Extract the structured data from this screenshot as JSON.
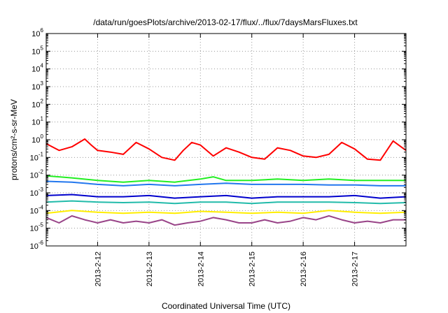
{
  "chart_data": {
    "type": "line",
    "title": "/data/run/goesPlots/archive/2013-02-17/flux/../flux/7daysMarsFluxes.txt",
    "xlabel": "Coordinated Universal Time (UTC)",
    "ylabel": "protons/cm²-s-sr-MeV",
    "y_scale": "log",
    "ylim": [
      1e-06,
      1000000.0
    ],
    "y_ticks": [
      {
        "base": "10",
        "exp": "-6"
      },
      {
        "base": "10",
        "exp": "-5"
      },
      {
        "base": "10",
        "exp": "-4"
      },
      {
        "base": "10",
        "exp": "-3"
      },
      {
        "base": "10",
        "exp": "-2"
      },
      {
        "base": "10",
        "exp": "-1"
      },
      {
        "base": "10",
        "exp": "0"
      },
      {
        "base": "10",
        "exp": "1"
      },
      {
        "base": "10",
        "exp": "2"
      },
      {
        "base": "10",
        "exp": "3"
      },
      {
        "base": "10",
        "exp": "4"
      },
      {
        "base": "10",
        "exp": "5"
      },
      {
        "base": "10",
        "exp": "6"
      }
    ],
    "xlim": [
      "2013-02-11",
      "2013-02-18"
    ],
    "x_tick_labels": [
      "2013-2-12",
      "2013-2-13",
      "2013-2-14",
      "2013-2-15",
      "2013-2-16",
      "2013-2-17"
    ],
    "grid": true,
    "series": [
      {
        "color": "#ff0000",
        "x": [
          "2013-02-11",
          "2013-02-11 06:00",
          "2013-02-11 12:00",
          "2013-02-11 18:00",
          "2013-02-11 21:00",
          "2013-02-12 00:00",
          "2013-02-12 06:00",
          "2013-02-12 12:00",
          "2013-02-12 18:00",
          "2013-02-13 00:00",
          "2013-02-13 06:00",
          "2013-02-13 12:00",
          "2013-02-13 16:00",
          "2013-02-13 20:00",
          "2013-02-14 00:00",
          "2013-02-14 06:00",
          "2013-02-14 12:00",
          "2013-02-14 18:00",
          "2013-02-15 00:00",
          "2013-02-15 06:00",
          "2013-02-15 12:00",
          "2013-02-15 18:00",
          "2013-02-16 00:00",
          "2013-02-16 06:00",
          "2013-02-16 12:00",
          "2013-02-16 18:00",
          "2013-02-17 00:00",
          "2013-02-17 06:00",
          "2013-02-17 12:00",
          "2013-02-17 18:00",
          "2013-02-18 00:00"
        ],
        "y": [
          0.6,
          0.25,
          0.4,
          1.1,
          0.5,
          0.25,
          0.2,
          0.15,
          0.7,
          0.3,
          0.1,
          0.07,
          0.25,
          0.7,
          0.5,
          0.12,
          0.35,
          0.2,
          0.1,
          0.08,
          0.35,
          0.25,
          0.12,
          0.1,
          0.15,
          0.7,
          0.3,
          0.08,
          0.07,
          0.85,
          0.25
        ]
      },
      {
        "color": "#22ee22",
        "x": [
          "2013-02-11",
          "2013-02-11 06:00",
          "2013-02-11 12:00",
          "2013-02-12 00:00",
          "2013-02-12 12:00",
          "2013-02-13 00:00",
          "2013-02-13 12:00",
          "2013-02-14 00:00",
          "2013-02-14 06:00",
          "2013-02-14 12:00",
          "2013-02-15 00:00",
          "2013-02-15 12:00",
          "2013-02-16 00:00",
          "2013-02-16 12:00",
          "2013-02-17 00:00",
          "2013-02-17 12:00",
          "2013-02-18 00:00"
        ],
        "y": [
          0.009,
          0.008,
          0.007,
          0.005,
          0.004,
          0.005,
          0.004,
          0.006,
          0.008,
          0.005,
          0.005,
          0.006,
          0.005,
          0.006,
          0.005,
          0.005,
          0.005
        ]
      },
      {
        "color": "#2277ee",
        "x": [
          "2013-02-11",
          "2013-02-11 12:00",
          "2013-02-12 00:00",
          "2013-02-12 12:00",
          "2013-02-13 00:00",
          "2013-02-13 12:00",
          "2013-02-14 00:00",
          "2013-02-14 12:00",
          "2013-02-15 00:00",
          "2013-02-15 12:00",
          "2013-02-16 00:00",
          "2013-02-16 12:00",
          "2013-02-17 00:00",
          "2013-02-17 12:00",
          "2013-02-18 00:00"
        ],
        "y": [
          0.0045,
          0.004,
          0.003,
          0.0025,
          0.003,
          0.0025,
          0.003,
          0.0035,
          0.003,
          0.003,
          0.003,
          0.0028,
          0.0028,
          0.0025,
          0.0025
        ]
      },
      {
        "color": "#0000cc",
        "x": [
          "2013-02-11",
          "2013-02-11 12:00",
          "2013-02-12 00:00",
          "2013-02-12 12:00",
          "2013-02-13 00:00",
          "2013-02-13 12:00",
          "2013-02-14 00:00",
          "2013-02-14 12:00",
          "2013-02-15 00:00",
          "2013-02-15 12:00",
          "2013-02-16 00:00",
          "2013-02-16 12:00",
          "2013-02-17 00:00",
          "2013-02-17 12:00",
          "2013-02-18 00:00"
        ],
        "y": [
          0.0007,
          0.0008,
          0.0006,
          0.0006,
          0.0007,
          0.0005,
          0.0006,
          0.0007,
          0.0005,
          0.0006,
          0.0006,
          0.0006,
          0.0007,
          0.0005,
          0.0006
        ]
      },
      {
        "color": "#22bbaa",
        "x": [
          "2013-02-11",
          "2013-02-11 12:00",
          "2013-02-12 00:00",
          "2013-02-12 12:00",
          "2013-02-13 00:00",
          "2013-02-13 12:00",
          "2013-02-14 00:00",
          "2013-02-14 12:00",
          "2013-02-15 00:00",
          "2013-02-15 12:00",
          "2013-02-16 00:00",
          "2013-02-16 12:00",
          "2013-02-17 00:00",
          "2013-02-17 12:00",
          "2013-02-18 00:00"
        ],
        "y": [
          0.0003,
          0.00035,
          0.0003,
          0.00028,
          0.0003,
          0.00025,
          0.0003,
          0.0003,
          0.00025,
          0.0003,
          0.0003,
          0.0003,
          0.00028,
          0.00025,
          0.00028
        ]
      },
      {
        "color": "#ffee00",
        "x": [
          "2013-02-11",
          "2013-02-11 12:00",
          "2013-02-12 00:00",
          "2013-02-12 12:00",
          "2013-02-13 00:00",
          "2013-02-13 12:00",
          "2013-02-14 00:00",
          "2013-02-14 12:00",
          "2013-02-15 00:00",
          "2013-02-15 12:00",
          "2013-02-16 00:00",
          "2013-02-16 12:00",
          "2013-02-17 00:00",
          "2013-02-17 12:00",
          "2013-02-18 00:00"
        ],
        "y": [
          7e-05,
          0.0001,
          8e-05,
          7e-05,
          8e-05,
          7e-05,
          9e-05,
          8e-05,
          7e-05,
          8e-05,
          7e-05,
          0.0001,
          8e-05,
          7e-05,
          8e-05
        ]
      },
      {
        "color": "#994488",
        "x": [
          "2013-02-11",
          "2013-02-11 06:00",
          "2013-02-11 12:00",
          "2013-02-11 18:00",
          "2013-02-12 00:00",
          "2013-02-12 06:00",
          "2013-02-12 12:00",
          "2013-02-12 18:00",
          "2013-02-13 00:00",
          "2013-02-13 06:00",
          "2013-02-13 12:00",
          "2013-02-13 18:00",
          "2013-02-14 00:00",
          "2013-02-14 06:00",
          "2013-02-14 12:00",
          "2013-02-14 18:00",
          "2013-02-15 00:00",
          "2013-02-15 06:00",
          "2013-02-15 12:00",
          "2013-02-15 18:00",
          "2013-02-16 00:00",
          "2013-02-16 06:00",
          "2013-02-16 12:00",
          "2013-02-16 18:00",
          "2013-02-17 00:00",
          "2013-02-17 06:00",
          "2013-02-17 12:00",
          "2013-02-17 18:00",
          "2013-02-18 00:00"
        ],
        "y": [
          4e-05,
          2e-05,
          5e-05,
          3e-05,
          2e-05,
          3e-05,
          2e-05,
          2.5e-05,
          2e-05,
          3e-05,
          1.5e-05,
          2e-05,
          2.5e-05,
          4e-05,
          3e-05,
          2e-05,
          2e-05,
          3e-05,
          2e-05,
          2.5e-05,
          4e-05,
          3e-05,
          5e-05,
          3e-05,
          2e-05,
          2.5e-05,
          2e-05,
          3e-05,
          3e-05
        ]
      }
    ]
  }
}
